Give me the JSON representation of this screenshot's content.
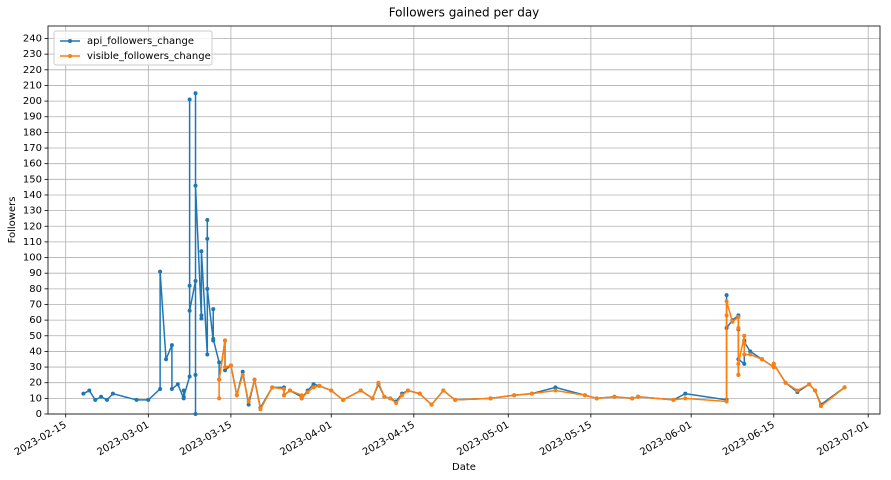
{
  "chart_data": {
    "type": "line",
    "title": "Followers gained per day",
    "x_label": "Date",
    "y_label": "Followers",
    "xlim": [
      "2023-02-12",
      "2023-07-03"
    ],
    "xticks": [
      "2023-02-15",
      "2023-03-01",
      "2023-03-15",
      "2023-04-01",
      "2023-04-15",
      "2023-05-01",
      "2023-05-15",
      "2023-06-01",
      "2023-06-15",
      "2023-07-01"
    ],
    "ylim": [
      0,
      248
    ],
    "yticks": [
      0,
      10,
      20,
      30,
      40,
      50,
      60,
      70,
      80,
      90,
      100,
      110,
      120,
      130,
      140,
      150,
      160,
      170,
      180,
      190,
      200,
      210,
      220,
      230,
      240
    ],
    "grid": true,
    "legend": "upper left",
    "series": [
      {
        "name": "api_followers_change",
        "color": "#1f77b4",
        "x": [
          "2023-02-18",
          "2023-02-19",
          "2023-02-20",
          "2023-02-21",
          "2023-02-22",
          "2023-02-23",
          "2023-02-27",
          "2023-03-01",
          "2023-03-03",
          "2023-03-03",
          "2023-03-04",
          "2023-03-05",
          "2023-03-05",
          "2023-03-06",
          "2023-03-07",
          "2023-03-07",
          "2023-03-07",
          "2023-03-08",
          "2023-03-08",
          "2023-03-08",
          "2023-03-08",
          "2023-03-09",
          "2023-03-09",
          "2023-03-09",
          "2023-03-09",
          "2023-03-09",
          "2023-03-10",
          "2023-03-10",
          "2023-03-10",
          "2023-03-11",
          "2023-03-11",
          "2023-03-11",
          "2023-03-11",
          "2023-03-12",
          "2023-03-12",
          "2023-03-12",
          "2023-03-13",
          "2023-03-13",
          "2023-03-14",
          "2023-03-14",
          "2023-03-15",
          "2023-03-16",
          "2023-03-17",
          "2023-03-18",
          "2023-03-19",
          "2023-03-20",
          "2023-03-22",
          "2023-03-24",
          "2023-03-24",
          "2023-03-25",
          "2023-03-27",
          "2023-03-27",
          "2023-03-28",
          "2023-03-29",
          "2023-03-30",
          "2023-04-01",
          "2023-04-03",
          "2023-04-06",
          "2023-04-08",
          "2023-04-09",
          "2023-04-10",
          "2023-04-11",
          "2023-04-12",
          "2023-04-13",
          "2023-04-14",
          "2023-04-16",
          "2023-04-18",
          "2023-04-20",
          "2023-04-22",
          "2023-04-28",
          "2023-05-02",
          "2023-05-05",
          "2023-05-09",
          "2023-05-14",
          "2023-05-16",
          "2023-05-19",
          "2023-05-22",
          "2023-05-23",
          "2023-05-29",
          "2023-05-31",
          "2023-06-07",
          "2023-06-07",
          "2023-06-07",
          "2023-06-08",
          "2023-06-09",
          "2023-06-09",
          "2023-06-09",
          "2023-06-09",
          "2023-06-10",
          "2023-06-10",
          "2023-06-10",
          "2023-06-11",
          "2023-06-13",
          "2023-06-15",
          "2023-06-15",
          "2023-06-17",
          "2023-06-19",
          "2023-06-21",
          "2023-06-22",
          "2023-06-23",
          "2023-06-27"
        ],
        "values": [
          13,
          15,
          9,
          11,
          9,
          13,
          9,
          9,
          16,
          91,
          35,
          44,
          16,
          19,
          10,
          15,
          11,
          24,
          82,
          201,
          66,
          85,
          0,
          205,
          25,
          146,
          61,
          63,
          104,
          38,
          112,
          124,
          80,
          47,
          67,
          48,
          33,
          22,
          47,
          28,
          31,
          12,
          27,
          6,
          22,
          4,
          17,
          17,
          12,
          15,
          11,
          10,
          15,
          19,
          18,
          15,
          9,
          15,
          10,
          19,
          11,
          10,
          8,
          13,
          15,
          13,
          6,
          15,
          9,
          10,
          12,
          13,
          17,
          12,
          10,
          11,
          10,
          11,
          9,
          13,
          9,
          76,
          55,
          60,
          63,
          25,
          54,
          35,
          32,
          47,
          46,
          40,
          35,
          30,
          32,
          20,
          14,
          19,
          15,
          6,
          17
        ]
      },
      {
        "name": "visible_followers_change",
        "color": "#ff7f0e",
        "x": [
          "2023-03-13",
          "2023-03-13",
          "2023-03-14",
          "2023-03-14",
          "2023-03-15",
          "2023-03-16",
          "2023-03-17",
          "2023-03-18",
          "2023-03-19",
          "2023-03-20",
          "2023-03-22",
          "2023-03-24",
          "2023-03-24",
          "2023-03-25",
          "2023-03-27",
          "2023-03-27",
          "2023-03-28",
          "2023-03-29",
          "2023-03-30",
          "2023-04-01",
          "2023-04-03",
          "2023-04-06",
          "2023-04-08",
          "2023-04-09",
          "2023-04-10",
          "2023-04-11",
          "2023-04-12",
          "2023-04-13",
          "2023-04-14",
          "2023-04-16",
          "2023-04-18",
          "2023-04-20",
          "2023-04-22",
          "2023-04-28",
          "2023-05-02",
          "2023-05-05",
          "2023-05-09",
          "2023-05-14",
          "2023-05-16",
          "2023-05-19",
          "2023-05-22",
          "2023-05-23",
          "2023-05-29",
          "2023-05-31",
          "2023-06-07",
          "2023-06-07",
          "2023-06-07",
          "2023-06-08",
          "2023-06-09",
          "2023-06-09",
          "2023-06-09",
          "2023-06-09",
          "2023-06-10",
          "2023-06-10",
          "2023-06-10",
          "2023-06-11",
          "2023-06-13",
          "2023-06-15",
          "2023-06-15",
          "2023-06-17",
          "2023-06-19",
          "2023-06-21",
          "2023-06-22",
          "2023-06-23",
          "2023-06-27"
        ],
        "values": [
          10,
          22,
          47,
          30,
          31,
          12,
          25,
          8,
          22,
          3,
          17,
          16,
          12,
          15,
          12,
          10,
          14,
          17,
          18,
          15,
          9,
          15,
          10,
          20,
          11,
          10,
          7,
          12,
          15,
          13,
          6,
          15,
          9,
          10,
          12,
          13,
          15,
          12,
          10,
          11,
          10,
          11,
          9,
          10,
          8,
          63,
          72,
          59,
          62,
          25,
          55,
          32,
          50,
          45,
          38,
          38,
          35,
          30,
          32,
          20,
          15,
          19,
          15,
          5,
          17
        ]
      }
    ]
  }
}
